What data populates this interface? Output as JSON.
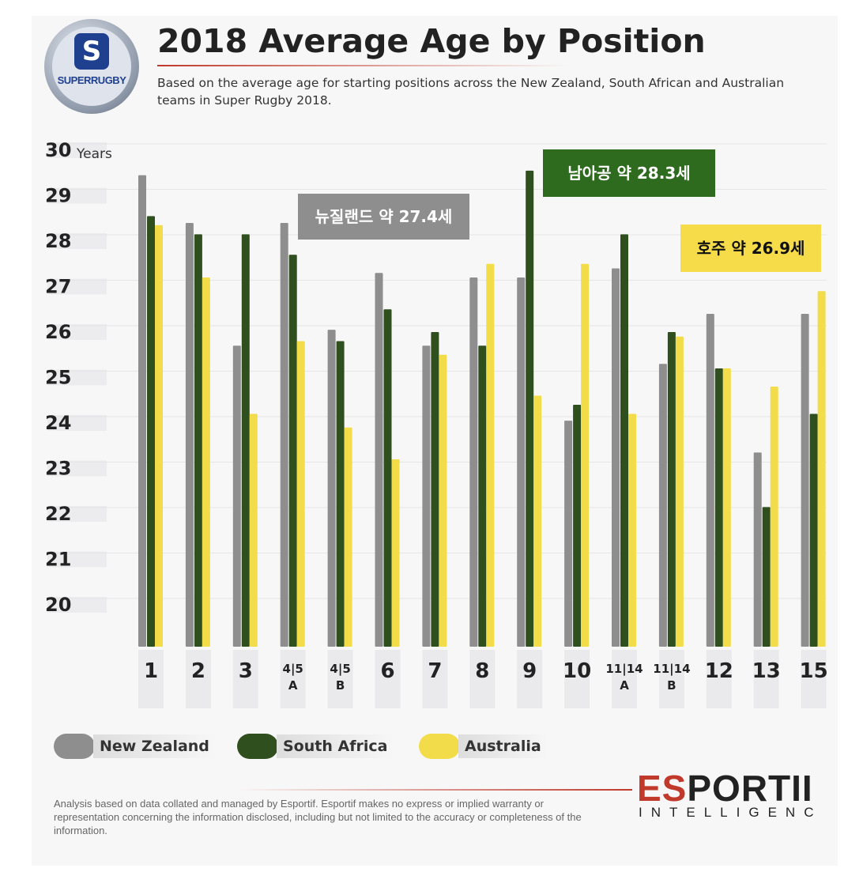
{
  "logo": {
    "mark": "S",
    "text": "SUPERRUGBY"
  },
  "chart_data": {
    "type": "bar",
    "title": "2018 Average Age by Position",
    "subtitle": "Based on the average age for starting positions across the New Zealand, South African and Australian teams in Super Rugby 2018.",
    "ylabel": "Years",
    "ylim": [
      20,
      30
    ],
    "yticks": [
      "20",
      "21",
      "22",
      "23",
      "24",
      "25",
      "26",
      "27",
      "28",
      "29",
      "30"
    ],
    "grid": true,
    "legend_position": "bottom",
    "categories": [
      [
        "1",
        ""
      ],
      [
        "2",
        ""
      ],
      [
        "3",
        ""
      ],
      [
        "4|5",
        "A"
      ],
      [
        "4|5",
        "B"
      ],
      [
        "6",
        ""
      ],
      [
        "7",
        ""
      ],
      [
        "8",
        ""
      ],
      [
        "9",
        ""
      ],
      [
        "10",
        ""
      ],
      [
        "11|14",
        "A"
      ],
      [
        "11|14",
        "B"
      ],
      [
        "12",
        ""
      ],
      [
        "13",
        ""
      ],
      [
        "15",
        ""
      ]
    ],
    "series": [
      {
        "name": "New Zealand",
        "color": "#8e8e8e",
        "values": [
          29.45,
          28.4,
          25.7,
          28.4,
          26.05,
          27.3,
          25.7,
          27.2,
          27.2,
          24.05,
          27.4,
          25.3,
          26.4,
          23.35,
          26.4
        ]
      },
      {
        "name": "South Africa",
        "color": "#2f4f1f",
        "values": [
          28.55,
          28.15,
          28.15,
          27.7,
          25.8,
          26.5,
          26.0,
          25.7,
          29.55,
          24.4,
          28.15,
          26.0,
          25.2,
          22.15,
          24.2
        ]
      },
      {
        "name": "Australia",
        "color": "#f2dc4a",
        "values": [
          28.35,
          27.2,
          24.2,
          25.8,
          23.9,
          23.2,
          25.5,
          27.5,
          24.6,
          27.5,
          24.2,
          25.9,
          25.2,
          24.8,
          26.9
        ]
      }
    ],
    "annotations": [
      {
        "text": "뉴질랜드 약 27.4세",
        "color": "#8e8e8e",
        "text_color": "#ffffff"
      },
      {
        "text": "남아공 약 28.3세",
        "color": "#2f6b1f",
        "text_color": "#ffffff"
      },
      {
        "text": "호주 약 26.9세",
        "color": "#f7dc4a",
        "text_color": "#111111"
      }
    ]
  },
  "disclaimer": "Analysis based on data collated and managed by Esportif. Esportif makes no express or implied warranty or representation concerning the information disclosed, including but not limited to the accuracy or completeness of the information.",
  "brand": {
    "line1_red": "ES",
    "line1_rest": "PORTII",
    "line2": "INTELLIGENC"
  }
}
